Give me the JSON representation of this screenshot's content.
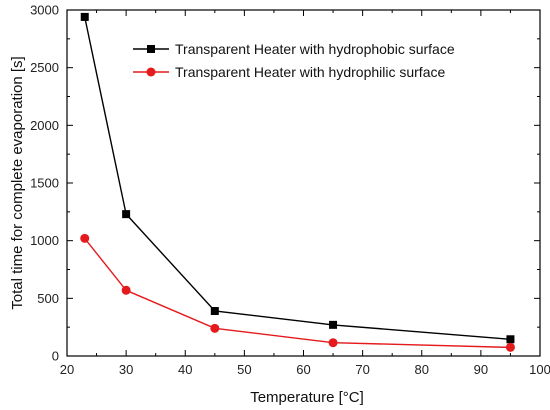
{
  "chart_data": {
    "type": "line",
    "title": "",
    "xlabel": "Temperature [°C]",
    "ylabel": "Total time for complete evaporation [s]",
    "xlim": [
      20,
      100
    ],
    "ylim": [
      0,
      3000
    ],
    "xticks": [
      20,
      30,
      40,
      50,
      60,
      70,
      80,
      90,
      100
    ],
    "yticks": [
      0,
      500,
      1000,
      1500,
      2000,
      2500,
      3000
    ],
    "grid": false,
    "legend_position": "top-right",
    "series": [
      {
        "name": "Transparent Heater with hydrophobic surface",
        "color": "#000000",
        "marker": "square",
        "x": [
          23,
          30,
          45,
          65,
          95
        ],
        "y": [
          2940,
          1230,
          390,
          270,
          145
        ]
      },
      {
        "name": "Transparent Heater with hydrophilic surface",
        "color": "#e41a1c",
        "marker": "circle",
        "x": [
          23,
          30,
          45,
          65,
          95
        ],
        "y": [
          1020,
          570,
          240,
          115,
          75
        ]
      }
    ]
  }
}
